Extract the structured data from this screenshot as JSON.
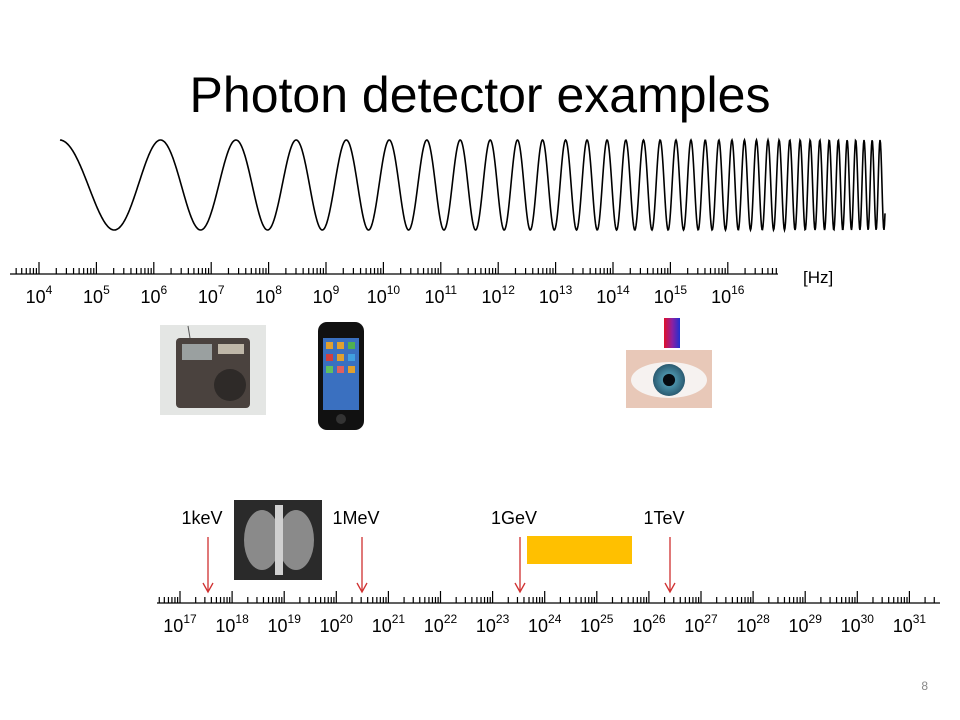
{
  "title": "Photon detector examples",
  "unit_label": "[Hz]",
  "frequency_axis": {
    "labels": [
      {
        "base": "10",
        "exponent": "4"
      },
      {
        "base": "10",
        "exponent": "5"
      },
      {
        "base": "10",
        "exponent": "6"
      },
      {
        "base": "10",
        "exponent": "7"
      },
      {
        "base": "10",
        "exponent": "8"
      },
      {
        "base": "10",
        "exponent": "9"
      },
      {
        "base": "10",
        "exponent": "10"
      },
      {
        "base": "10",
        "exponent": "11"
      },
      {
        "base": "10",
        "exponent": "12"
      },
      {
        "base": "10",
        "exponent": "13"
      },
      {
        "base": "10",
        "exponent": "14"
      },
      {
        "base": "10",
        "exponent": "15"
      },
      {
        "base": "10",
        "exponent": "16"
      }
    ]
  },
  "energy_axis": {
    "labels": [
      {
        "base": "10",
        "exponent": "17"
      },
      {
        "base": "10",
        "exponent": "18"
      },
      {
        "base": "10",
        "exponent": "19"
      },
      {
        "base": "10",
        "exponent": "20"
      },
      {
        "base": "10",
        "exponent": "21"
      },
      {
        "base": "10",
        "exponent": "22"
      },
      {
        "base": "10",
        "exponent": "23"
      },
      {
        "base": "10",
        "exponent": "24"
      },
      {
        "base": "10",
        "exponent": "25"
      },
      {
        "base": "10",
        "exponent": "26"
      },
      {
        "base": "10",
        "exponent": "27"
      },
      {
        "base": "10",
        "exponent": "28"
      },
      {
        "base": "10",
        "exponent": "29"
      },
      {
        "base": "10",
        "exponent": "30"
      },
      {
        "base": "10",
        "exponent": "31"
      }
    ]
  },
  "energy_markers": [
    "1keV",
    "1MeV",
    "1GeV",
    "1TeV"
  ],
  "page_number": "8"
}
